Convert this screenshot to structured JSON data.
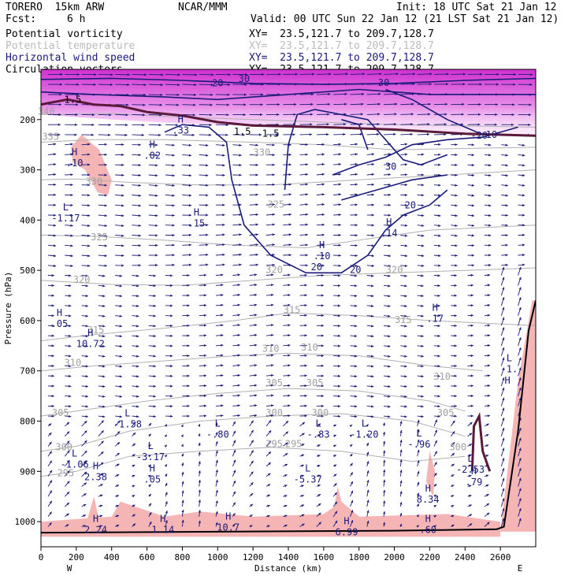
{
  "header": {
    "model": "TORERO  15km ARW",
    "org": "NCAR/MMM",
    "init": "Init: 18 UTC Sat 21 Jan 12",
    "fcst_label": "Fcst:",
    "fcst_value": "6 h",
    "valid": "Valid: 00 UTC Sun 22 Jan 12 (21 LST Sat 21 Jan 12)",
    "fields": [
      {
        "name": "Potential vorticity",
        "xy": "XY=  23.5,121.7 to 209.7,128.7",
        "color": "#000000"
      },
      {
        "name": "Potential temperature",
        "xy": "XY=  23.5,121.7 to 209.7,128.7",
        "color": "#bbbbbb"
      },
      {
        "name": "Horizontal wind speed",
        "xy": "XY=  23.5,121.7 to 209.7,128.7",
        "color": "#1a1a7a"
      },
      {
        "name": "Circulation vectors",
        "xy": "XY=  23.5,121.7 to 209.7,128.7",
        "color": "#000000"
      }
    ]
  },
  "colors": {
    "pv_fill": "#f5b5b5",
    "pv_strong": "#e050d8",
    "theta": "#b0b0b0",
    "wind": "#1a1a7a",
    "vector": "#1a1a7a",
    "terrain": "#000000"
  },
  "chart_data": {
    "type": "cross-section",
    "xlabel": "Distance (km)",
    "ylabel": "Pressure (hPa)",
    "xlim": [
      0,
      2800
    ],
    "ylim": [
      1050,
      100
    ],
    "x_ticks": [
      0,
      200,
      400,
      600,
      800,
      1000,
      1200,
      1400,
      1600,
      1800,
      2000,
      2200,
      2400,
      2600
    ],
    "y_ticks": [
      200,
      300,
      400,
      500,
      600,
      700,
      800,
      900,
      1000
    ],
    "x_ends": [
      "W",
      "E"
    ],
    "theta_labels": [
      {
        "text": "340",
        "x": 30,
        "y": 190
      },
      {
        "text": "335",
        "x": 55,
        "y": 240
      },
      {
        "text": "330",
        "x": 300,
        "y": 330
      },
      {
        "text": "325",
        "x": 330,
        "y": 440
      },
      {
        "text": "320",
        "x": 230,
        "y": 525
      },
      {
        "text": "315",
        "x": 310,
        "y": 625
      },
      {
        "text": "310",
        "x": 180,
        "y": 690
      },
      {
        "text": "305",
        "x": 110,
        "y": 790
      },
      {
        "text": "300",
        "x": 130,
        "y": 858
      },
      {
        "text": "295",
        "x": 140,
        "y": 910
      },
      {
        "text": "305",
        "x": 1320,
        "y": 730
      },
      {
        "text": "300",
        "x": 1320,
        "y": 790
      },
      {
        "text": "295",
        "x": 1320,
        "y": 852
      },
      {
        "text": "295",
        "x": 1430,
        "y": 852
      },
      {
        "text": "305",
        "x": 1550,
        "y": 730
      },
      {
        "text": "300",
        "x": 1580,
        "y": 790
      },
      {
        "text": "310",
        "x": 1300,
        "y": 662
      },
      {
        "text": "310",
        "x": 1520,
        "y": 660
      },
      {
        "text": "315",
        "x": 1420,
        "y": 585
      },
      {
        "text": "315",
        "x": 2050,
        "y": 605
      },
      {
        "text": "320",
        "x": 1320,
        "y": 505
      },
      {
        "text": "320",
        "x": 2000,
        "y": 505
      },
      {
        "text": "325",
        "x": 1330,
        "y": 375
      },
      {
        "text": "310",
        "x": 2270,
        "y": 718
      },
      {
        "text": "305",
        "x": 2290,
        "y": 790
      },
      {
        "text": "300",
        "x": 2360,
        "y": 858
      },
      {
        "text": "330",
        "x": 1250,
        "y": 272
      }
    ],
    "wind_labels": [
      {
        "text": "20",
        "x": 1000,
        "y": 134
      },
      {
        "text": "30",
        "x": 1150,
        "y": 125
      },
      {
        "text": "30",
        "x": 1940,
        "y": 133
      },
      {
        "text": "20",
        "x": 1560,
        "y": 500
      },
      {
        "text": "20",
        "x": 1780,
        "y": 505
      },
      {
        "text": "30",
        "x": 1980,
        "y": 300
      },
      {
        "text": "20",
        "x": 2090,
        "y": 377
      },
      {
        "text": "-20",
        "x": 2480,
        "y": 238
      },
      {
        "text": "10",
        "x": 2550,
        "y": 236
      }
    ],
    "pv_labels": [
      {
        "text": "1.5",
        "x": 180,
        "y": 167
      },
      {
        "text": "1.5",
        "x": 1140,
        "y": 230
      },
      {
        "text": "1.5",
        "x": 1300,
        "y": 234
      }
    ],
    "extrema": [
      {
        "type": "H",
        "value": ".10",
        "x": 190,
        "y": 280
      },
      {
        "type": "H",
        "value": ".02",
        "x": 630,
        "y": 265
      },
      {
        "type": "H",
        "value": ".33",
        "x": 790,
        "y": 215
      },
      {
        "type": "L",
        "value": "1.17",
        "x": 140,
        "y": 390
      },
      {
        "type": "H",
        "value": ".15",
        "x": 880,
        "y": 400
      },
      {
        "type": "H",
        "value": ".10",
        "x": 1590,
        "y": 465
      },
      {
        "type": "H",
        "value": ".14",
        "x": 1970,
        "y": 420
      },
      {
        "type": "H",
        "value": ".05",
        "x": 105,
        "y": 600
      },
      {
        "type": "H",
        "value": "10.72",
        "x": 280,
        "y": 640
      },
      {
        "type": "H",
        "value": ".17",
        "x": 2230,
        "y": 590
      },
      {
        "type": "L",
        "value": "1.58",
        "x": 490,
        "y": 800
      },
      {
        "type": "L",
        "value": ".80",
        "x": 1000,
        "y": 820
      },
      {
        "type": "L",
        "value": ".83",
        "x": 1570,
        "y": 820
      },
      {
        "type": "L",
        "value": "1.20",
        "x": 1830,
        "y": 820
      },
      {
        "type": "L",
        "value": ".96",
        "x": 2140,
        "y": 840
      },
      {
        "type": "L",
        "value": "1.06",
        "x": 190,
        "y": 880
      },
      {
        "type": "L",
        "value": "3.17",
        "x": 620,
        "y": 865
      },
      {
        "type": "H",
        "value": "2.38",
        "x": 310,
        "y": 905
      },
      {
        "type": "H",
        "value": ".05",
        "x": 630,
        "y": 910
      },
      {
        "type": "L",
        "value": "5.37",
        "x": 1510,
        "y": 910
      },
      {
        "type": "L",
        "value": "2.53",
        "x": 2430,
        "y": 890
      },
      {
        "type": "H",
        "value": ".79",
        "x": 2450,
        "y": 915
      },
      {
        "type": "H",
        "value": "8.34",
        "x": 2190,
        "y": 950
      },
      {
        "type": "H",
        "value": "2.24",
        "x": 310,
        "y": 1010
      },
      {
        "type": "H",
        "value": "1.14",
        "x": 690,
        "y": 1010
      },
      {
        "type": "H",
        "value": "10.7",
        "x": 1060,
        "y": 1005
      },
      {
        "type": "H",
        "value": "6.99",
        "x": 1730,
        "y": 1015
      },
      {
        "type": "H",
        "value": ".60",
        "x": 2190,
        "y": 1010
      },
      {
        "type": "L",
        "value": "1.",
        "x": 2650,
        "y": 690
      },
      {
        "type": "H",
        "value": "",
        "x": 2640,
        "y": 735
      }
    ]
  }
}
